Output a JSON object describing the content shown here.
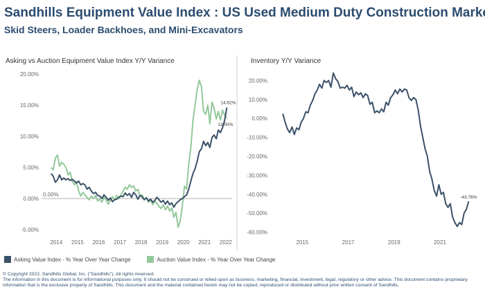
{
  "header": {
    "title": "Sandhills Equipment Value Index : US Used Medium Duty Construction Market",
    "subtitle": "Skid Steers, Loader Backhoes, and Mini-Excavators"
  },
  "colors": {
    "asking": "#3a5068",
    "auction": "#93c89b",
    "zero_line": "#999999",
    "divider": "#d0d0d0"
  },
  "legend": {
    "asking": "Asking Value Index - % Year Over Year Change",
    "auction": "Auction Value Index - % Year Over Year Change"
  },
  "footer": {
    "line1": "© Copyright 2022, Sandhills Global, Inc. (\"Sandhills\"). All rights reserved.",
    "line2": "The information in this document is for informational purposes only.  It should not be construed or relied upon as business, marketing, financial, investment, legal, regulatory or other advice. This document contains proprietary information that is the exclusive property of Sandhills. This document and the material contained herein may not be copied, reproduced or distributed without prior written consent of Sandhills."
  },
  "chart_data": [
    {
      "type": "line",
      "title": "Asking vs Auction Equipment Value Index Y/Y Variance",
      "xlim": [
        2013.3,
        2022.3
      ],
      "ylim": [
        -6,
        21
      ],
      "yticks": [
        -5,
        0,
        5,
        10,
        15,
        20
      ],
      "ytick_labels": [
        "-5.00%",
        "0.00%",
        "5.00%",
        "10.00%",
        "15.00%",
        "20.00%"
      ],
      "xticks": [
        2014,
        2015,
        2016,
        2017,
        2018,
        2019,
        2020,
        2021,
        2022
      ],
      "xtick_labels": [
        "2014",
        "2015",
        "2016",
        "2017",
        "2018",
        "2019",
        "2020",
        "2021",
        "2022"
      ],
      "zero_label": "0.00%",
      "grid": false,
      "series": [
        {
          "name": "Asking Value Index - % Year Over Year Change",
          "color": "#3a5068",
          "x": [
            2013.75,
            2013.85,
            2013.95,
            2014.05,
            2014.15,
            2014.25,
            2014.35,
            2014.45,
            2014.55,
            2014.65,
            2014.75,
            2014.85,
            2014.95,
            2015.05,
            2015.15,
            2015.25,
            2015.35,
            2015.45,
            2015.55,
            2015.65,
            2015.75,
            2015.85,
            2015.95,
            2016.05,
            2016.15,
            2016.25,
            2016.35,
            2016.45,
            2016.55,
            2016.65,
            2016.75,
            2016.85,
            2016.95,
            2017.05,
            2017.15,
            2017.25,
            2017.35,
            2017.45,
            2017.55,
            2017.65,
            2017.75,
            2017.85,
            2017.95,
            2018.05,
            2018.15,
            2018.25,
            2018.35,
            2018.45,
            2018.55,
            2018.65,
            2018.75,
            2018.85,
            2018.95,
            2019.05,
            2019.15,
            2019.25,
            2019.35,
            2019.45,
            2019.55,
            2019.65,
            2019.75,
            2019.85,
            2019.95,
            2020.05,
            2020.15,
            2020.25,
            2020.35,
            2020.45,
            2020.55,
            2020.65,
            2020.75,
            2020.85,
            2020.95,
            2021.05,
            2021.15,
            2021.25,
            2021.35,
            2021.45,
            2021.55,
            2021.65,
            2021.75,
            2021.85,
            2021.95,
            2022.05
          ],
          "y": [
            4.0,
            3.6,
            2.6,
            3.0,
            3.8,
            3.0,
            3.3,
            3.0,
            3.2,
            2.9,
            3.1,
            2.8,
            2.5,
            2.8,
            2.2,
            2.4,
            2.2,
            1.5,
            1.8,
            1.2,
            0.8,
            1.0,
            0.5,
            0.4,
            0.0,
            0.6,
            0.2,
            -0.3,
            0.1,
            -0.5,
            -0.2,
            -0.1,
            0.2,
            0.4,
            0.3,
            0.9,
            0.5,
            0.8,
            0.2,
            1.0,
            0.6,
            -0.1,
            0.5,
            0.3,
            -0.2,
            0.1,
            -0.4,
            -0.1,
            -0.6,
            -0.3,
            0.2,
            -0.2,
            -0.6,
            -0.3,
            -0.9,
            -0.4,
            -1.0,
            -0.7,
            -1.4,
            -0.8,
            -0.5,
            -0.2,
            0.0,
            0.3,
            0.6,
            1.5,
            2.8,
            4.0,
            4.8,
            6.0,
            7.5,
            8.0,
            9.2,
            8.5,
            9.0,
            8.2,
            9.8,
            10.2,
            9.6,
            11.0,
            10.6,
            11.4,
            12.6,
            14.62
          ]
        },
        {
          "name": "Auction Value Index - % Year Over Year Change",
          "color": "#93c89b",
          "x": [
            2013.75,
            2013.85,
            2013.95,
            2014.05,
            2014.15,
            2014.25,
            2014.35,
            2014.45,
            2014.55,
            2014.65,
            2014.75,
            2014.85,
            2014.95,
            2015.05,
            2015.15,
            2015.25,
            2015.35,
            2015.45,
            2015.55,
            2015.65,
            2015.75,
            2015.85,
            2015.95,
            2016.05,
            2016.15,
            2016.25,
            2016.35,
            2016.45,
            2016.55,
            2016.65,
            2016.75,
            2016.85,
            2016.95,
            2017.05,
            2017.15,
            2017.25,
            2017.35,
            2017.45,
            2017.55,
            2017.65,
            2017.75,
            2017.85,
            2017.95,
            2018.05,
            2018.15,
            2018.25,
            2018.35,
            2018.45,
            2018.55,
            2018.65,
            2018.75,
            2018.85,
            2018.95,
            2019.05,
            2019.15,
            2019.25,
            2019.35,
            2019.45,
            2019.55,
            2019.65,
            2019.75,
            2019.85,
            2019.95,
            2020.05,
            2020.15,
            2020.25,
            2020.35,
            2020.45,
            2020.55,
            2020.65,
            2020.75,
            2020.85,
            2020.95,
            2021.05,
            2021.15,
            2021.25,
            2021.35,
            2021.45,
            2021.55,
            2021.65,
            2021.75,
            2021.85,
            2021.95,
            2022.05
          ],
          "y": [
            5.0,
            4.6,
            6.5,
            7.0,
            5.2,
            5.8,
            5.5,
            5.0,
            3.8,
            4.2,
            2.8,
            2.2,
            2.7,
            1.2,
            0.4,
            1.0,
            0.6,
            0.2,
            -0.2,
            0.4,
            0.0,
            0.5,
            -0.4,
            -0.1,
            -0.6,
            0.2,
            -0.3,
            -0.9,
            -0.3,
            0.3,
            -0.2,
            0.5,
            0.0,
            0.6,
            1.2,
            1.8,
            1.5,
            2.2,
            1.8,
            2.0,
            1.2,
            1.5,
            0.3,
            0.6,
            -0.2,
            0.2,
            -0.6,
            -0.2,
            -1.0,
            -0.4,
            -0.8,
            -1.3,
            -1.6,
            -1.0,
            -1.8,
            -1.2,
            -2.0,
            -1.5,
            -3.0,
            -2.2,
            -4.6,
            -3.6,
            -1.2,
            2.0,
            1.5,
            5.5,
            8.2,
            12.5,
            15.0,
            17.5,
            19.0,
            18.0,
            14.0,
            13.5,
            15.0,
            12.0,
            15.5,
            14.5,
            12.8,
            14.0,
            12.6,
            14.2,
            13.4,
            13.0
          ]
        }
      ],
      "annotations": [
        {
          "text": "14.62%",
          "x": 2022.05,
          "y": 14.62
        },
        {
          "text": "13.00%",
          "x": 2022.05,
          "y": 13.0
        }
      ]
    },
    {
      "type": "line",
      "title": "Inventory Y/Y Variance",
      "xlim": [
        2013.6,
        2022.6
      ],
      "ylim": [
        -62,
        26
      ],
      "yticks": [
        -60,
        -50,
        -40,
        -30,
        -20,
        -10,
        0,
        10,
        20
      ],
      "ytick_labels": [
        "-60.00%",
        "-50.00%",
        "-40.00%",
        "-30.00%",
        "-20.00%",
        "-10.00%",
        "0.00%",
        "10.00%",
        "20.00%"
      ],
      "xticks": [
        2015,
        2017,
        2019,
        2021
      ],
      "xtick_labels": [
        "2015",
        "2017",
        "2019",
        "2021"
      ],
      "grid": false,
      "series": [
        {
          "name": "",
          "color": "#3a5068",
          "x": [
            2014.15,
            2014.25,
            2014.35,
            2014.45,
            2014.55,
            2014.65,
            2014.75,
            2014.85,
            2014.95,
            2015.05,
            2015.15,
            2015.25,
            2015.35,
            2015.45,
            2015.55,
            2015.65,
            2015.75,
            2015.85,
            2015.95,
            2016.05,
            2016.15,
            2016.25,
            2016.35,
            2016.45,
            2016.55,
            2016.65,
            2016.75,
            2016.85,
            2016.95,
            2017.05,
            2017.15,
            2017.25,
            2017.35,
            2017.45,
            2017.55,
            2017.65,
            2017.75,
            2017.85,
            2017.95,
            2018.05,
            2018.15,
            2018.25,
            2018.35,
            2018.45,
            2018.55,
            2018.65,
            2018.75,
            2018.85,
            2018.95,
            2019.05,
            2019.15,
            2019.25,
            2019.35,
            2019.45,
            2019.55,
            2019.65,
            2019.75,
            2019.85,
            2019.95,
            2020.05,
            2020.15,
            2020.25,
            2020.35,
            2020.45,
            2020.55,
            2020.65,
            2020.75,
            2020.85,
            2020.95,
            2021.05,
            2021.15,
            2021.25,
            2021.35,
            2021.45,
            2021.55,
            2021.65,
            2021.75,
            2021.85,
            2021.95,
            2022.05,
            2022.15,
            2022.25
          ],
          "y": [
            2.5,
            -2.0,
            -5.5,
            -7.5,
            -4.5,
            -8.5,
            -5.0,
            -6.0,
            -2.0,
            0.0,
            3.5,
            3.0,
            7.0,
            9.5,
            13.0,
            15.0,
            18.0,
            16.0,
            20.0,
            19.0,
            20.0,
            16.5,
            24.0,
            21.0,
            19.5,
            16.0,
            16.5,
            16.0,
            17.5,
            15.0,
            16.5,
            11.5,
            14.0,
            12.5,
            13.5,
            11.0,
            13.0,
            12.0,
            7.5,
            8.5,
            3.0,
            4.0,
            3.0,
            5.0,
            3.5,
            8.5,
            7.0,
            11.0,
            12.5,
            15.0,
            13.0,
            15.5,
            14.0,
            15.5,
            15.0,
            11.0,
            9.5,
            11.0,
            10.0,
            4.5,
            -4.0,
            -10.0,
            -16.0,
            -20.0,
            -28.0,
            -32.0,
            -38.0,
            -41.0,
            -35.0,
            -40.0,
            -39.0,
            -45.0,
            -47.0,
            -45.0,
            -52.0,
            -55.0,
            -57.0,
            -55.0,
            -56.0,
            -50.0,
            -48.0,
            -43.76
          ]
        }
      ],
      "annotations": [
        {
          "text": "-43.76%",
          "x": 2022.25,
          "y": -43.76
        }
      ]
    }
  ]
}
